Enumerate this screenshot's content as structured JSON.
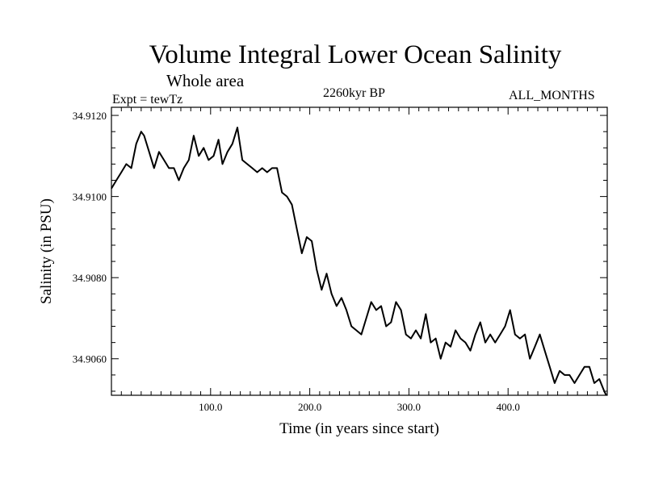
{
  "chart_data": {
    "type": "line",
    "title": "Volume Integral Lower Ocean Salinity",
    "subtitle": "Whole area",
    "experiment": "Expt = tewTz",
    "period": "2260kyr BP",
    "months": "ALL_MONTHS",
    "xlabel": "Time (in years since start)",
    "ylabel": "Salinity (in PSU)",
    "xlim": [
      0,
      500
    ],
    "ylim": [
      34.9051,
      34.9122
    ],
    "x_ticks": [
      100,
      200,
      300,
      400
    ],
    "x_tick_labels": [
      "100.0",
      "200.0",
      "300.0",
      "400.0"
    ],
    "y_ticks": [
      34.906,
      34.908,
      34.91,
      34.912
    ],
    "y_tick_labels": [
      "34.9060",
      "34.9080",
      "34.9100",
      "34.9120"
    ],
    "series": [
      {
        "name": "Salinity",
        "x": [
          0,
          5,
          10,
          15,
          20,
          25,
          30,
          33,
          38,
          43,
          48,
          53,
          58,
          63,
          68,
          73,
          78,
          83,
          88,
          93,
          98,
          103,
          108,
          112,
          117,
          122,
          127,
          132,
          137,
          142,
          147,
          152,
          157,
          162,
          167,
          172,
          177,
          182,
          187,
          192,
          197,
          202,
          207,
          212,
          217,
          222,
          227,
          232,
          237,
          242,
          247,
          252,
          257,
          262,
          267,
          272,
          277,
          282,
          287,
          292,
          297,
          302,
          307,
          312,
          317,
          322,
          327,
          332,
          337,
          342,
          347,
          352,
          357,
          362,
          367,
          372,
          377,
          382,
          387,
          392,
          397,
          402,
          407,
          412,
          417,
          422,
          427,
          432,
          437,
          442,
          447,
          452,
          457,
          462,
          467,
          472,
          477,
          482,
          487,
          492,
          497,
          499
        ],
        "values": [
          34.9102,
          34.9104,
          34.9106,
          34.9108,
          34.9107,
          34.9113,
          34.9116,
          34.9115,
          34.9111,
          34.9107,
          34.9111,
          34.9109,
          34.9107,
          34.9107,
          34.9104,
          34.9107,
          34.9109,
          34.9115,
          34.911,
          34.9112,
          34.9109,
          34.911,
          34.9114,
          34.9108,
          34.9111,
          34.9113,
          34.9117,
          34.9109,
          34.9108,
          34.9107,
          34.9106,
          34.9107,
          34.9106,
          34.9107,
          34.9107,
          34.9101,
          34.91,
          34.9098,
          34.9092,
          34.9086,
          34.909,
          34.9089,
          34.9082,
          34.9077,
          34.9081,
          34.9076,
          34.9073,
          34.9075,
          34.9072,
          34.9068,
          34.9067,
          34.9066,
          34.907,
          34.9074,
          34.9072,
          34.9073,
          34.9068,
          34.9069,
          34.9074,
          34.9072,
          34.9066,
          34.9065,
          34.9067,
          34.9065,
          34.9071,
          34.9064,
          34.9065,
          34.906,
          34.9064,
          34.9063,
          34.9067,
          34.9065,
          34.9064,
          34.9062,
          34.9066,
          34.9069,
          34.9064,
          34.9066,
          34.9064,
          34.9066,
          34.9068,
          34.9072,
          34.9066,
          34.9065,
          34.9066,
          34.906,
          34.9063,
          34.9066,
          34.9062,
          34.9058,
          34.9054,
          34.9057,
          34.9056,
          34.9056,
          34.9054,
          34.9056,
          34.9058,
          34.9058,
          34.9054,
          34.9055,
          34.9052,
          34.9051
        ]
      }
    ]
  }
}
